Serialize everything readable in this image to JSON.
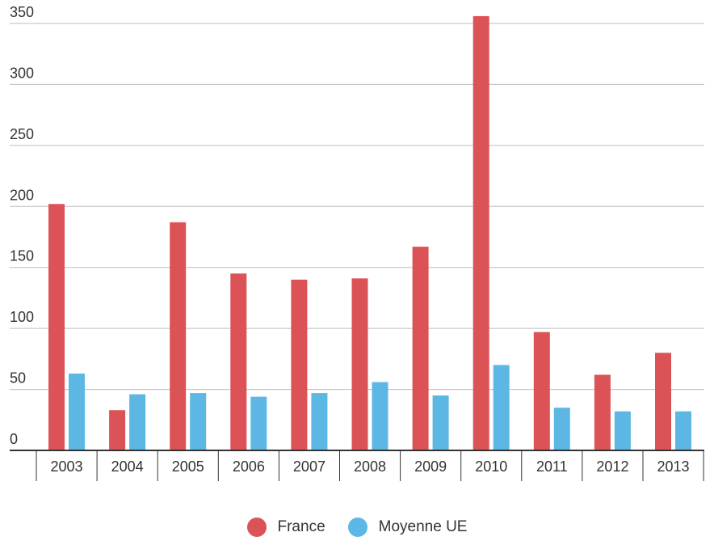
{
  "chart_data": {
    "type": "bar",
    "categories": [
      "2003",
      "2004",
      "2005",
      "2006",
      "2007",
      "2008",
      "2009",
      "2010",
      "2011",
      "2012",
      "2013"
    ],
    "series": [
      {
        "name": "France",
        "color": "#dc5357",
        "values": [
          202,
          33,
          187,
          145,
          140,
          141,
          167,
          356,
          97,
          62,
          80
        ]
      },
      {
        "name": "Moyenne UE",
        "color": "#5db7e4",
        "values": [
          63,
          46,
          47,
          44,
          47,
          56,
          45,
          70,
          35,
          32,
          32
        ]
      }
    ],
    "ylim": [
      0,
      350
    ],
    "yticks": [
      "0",
      "50",
      "100",
      "150",
      "200",
      "250",
      "300",
      "350"
    ],
    "grid": true,
    "legend_position": "bottom"
  }
}
